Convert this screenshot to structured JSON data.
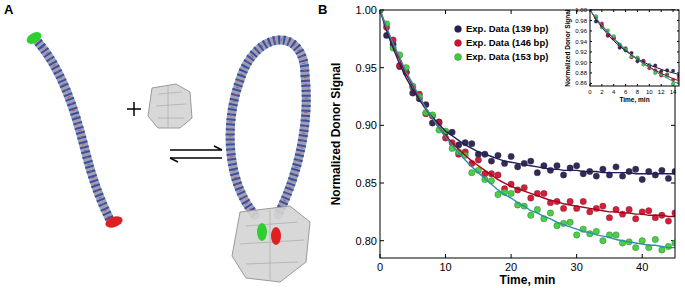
{
  "panel_labels": [
    "A",
    "B"
  ],
  "chart_data": [
    {
      "type": "scatter",
      "x_label": "Time, min",
      "y_label": "Normalized Donor Signal",
      "x": [
        0,
        1,
        2,
        3,
        4,
        5,
        6,
        7,
        8,
        9,
        10,
        11,
        12,
        13,
        14,
        15,
        16,
        17,
        18,
        19,
        20,
        21,
        22,
        23,
        24,
        25,
        26,
        27,
        28,
        29,
        30,
        31,
        32,
        33,
        34,
        35,
        36,
        37,
        38,
        39,
        40,
        41,
        42,
        43,
        44,
        45
      ],
      "xlim": [
        0,
        45
      ],
      "xticks": [
        0,
        10,
        20,
        30,
        40
      ],
      "ylim": [
        0.785,
        1.0
      ],
      "yticks": [
        {
          "value": 0.8,
          "label": "0.80"
        },
        {
          "value": 0.85,
          "label": "0.85"
        },
        {
          "value": 0.9,
          "label": "0.90"
        },
        {
          "value": 0.95,
          "label": "0.95"
        },
        {
          "value": 1.0,
          "label": "1.00"
        }
      ],
      "grid": false,
      "legend": "top-right",
      "series": [
        {
          "name": "Exp. Data (139 bp)",
          "type": "scatter",
          "marker": "circle",
          "color": "#2b1d4e",
          "values": [
            1.0,
            0.978,
            0.97,
            0.951,
            0.946,
            0.928,
            0.923,
            0.918,
            0.902,
            0.903,
            0.894,
            0.894,
            0.883,
            0.885,
            0.884,
            0.875,
            0.875,
            0.869,
            0.874,
            0.867,
            0.873,
            0.864,
            0.867,
            0.869,
            0.859,
            0.865,
            0.861,
            0.865,
            0.857,
            0.863,
            0.865,
            0.858,
            0.86,
            0.856,
            0.862,
            0.857,
            0.864,
            0.856,
            0.86,
            0.862,
            0.853,
            0.86,
            0.857,
            0.861,
            0.854,
            0.86
          ]
        },
        {
          "name": "Exp. Data (146 bp)",
          "type": "scatter",
          "marker": "circle",
          "color": "#d4112f",
          "values": [
            1.0,
            0.985,
            0.974,
            0.952,
            0.946,
            0.933,
            0.927,
            0.91,
            0.908,
            0.902,
            0.889,
            0.885,
            0.875,
            0.877,
            0.867,
            0.87,
            0.858,
            0.858,
            0.857,
            0.845,
            0.849,
            0.844,
            0.846,
            0.837,
            0.841,
            0.841,
            0.833,
            0.834,
            0.828,
            0.834,
            0.828,
            0.834,
            0.825,
            0.828,
            0.83,
            0.82,
            0.827,
            0.823,
            0.827,
            0.819,
            0.825,
            0.826,
            0.82,
            0.822,
            0.817,
            0.824
          ]
        },
        {
          "name": "Exp. Data (153 bp)",
          "type": "scatter",
          "marker": "circle",
          "color": "#3fcf3a",
          "values": [
            1.0,
            0.988,
            0.967,
            0.961,
            0.95,
            0.934,
            0.925,
            0.911,
            0.909,
            0.896,
            0.895,
            0.88,
            0.877,
            0.874,
            0.859,
            0.861,
            0.853,
            0.852,
            0.84,
            0.842,
            0.841,
            0.831,
            0.83,
            0.822,
            0.827,
            0.819,
            0.824,
            0.813,
            0.815,
            0.816,
            0.805,
            0.81,
            0.806,
            0.808,
            0.8,
            0.805,
            0.805,
            0.798,
            0.799,
            0.794,
            0.8,
            0.794,
            0.801,
            0.792,
            0.795,
            0.798
          ]
        },
        {
          "type": "line",
          "line_style": "solid",
          "color": "#1e1e5a",
          "values": [
            1.0,
            0.982,
            0.967,
            0.953,
            0.941,
            0.931,
            0.922,
            0.914,
            0.907,
            0.901,
            0.895,
            0.891,
            0.887,
            0.883,
            0.88,
            0.877,
            0.875,
            0.873,
            0.871,
            0.869,
            0.868,
            0.867,
            0.866,
            0.865,
            0.864,
            0.863,
            0.862,
            0.862,
            0.861,
            0.861,
            0.861,
            0.86,
            0.86,
            0.86,
            0.859,
            0.859,
            0.859,
            0.859,
            0.859,
            0.858,
            0.858,
            0.858,
            0.858,
            0.858,
            0.858,
            0.858
          ]
        },
        {
          "type": "line",
          "line_style": "solid",
          "color": "#a8001c",
          "values": [
            1.0,
            0.984,
            0.97,
            0.957,
            0.944,
            0.934,
            0.924,
            0.914,
            0.906,
            0.898,
            0.891,
            0.885,
            0.879,
            0.874,
            0.869,
            0.865,
            0.861,
            0.857,
            0.853,
            0.85,
            0.847,
            0.845,
            0.843,
            0.841,
            0.839,
            0.837,
            0.835,
            0.834,
            0.832,
            0.831,
            0.83,
            0.829,
            0.828,
            0.827,
            0.826,
            0.825,
            0.825,
            0.824,
            0.824,
            0.823,
            0.823,
            0.822,
            0.822,
            0.822,
            0.821,
            0.821
          ]
        },
        {
          "type": "line",
          "line_style": "solid",
          "color": "#2a8fa8",
          "values": [
            1.0,
            0.985,
            0.971,
            0.959,
            0.946,
            0.936,
            0.925,
            0.915,
            0.906,
            0.898,
            0.89,
            0.883,
            0.876,
            0.87,
            0.864,
            0.859,
            0.854,
            0.849,
            0.844,
            0.84,
            0.837,
            0.833,
            0.83,
            0.826,
            0.824,
            0.821,
            0.819,
            0.816,
            0.814,
            0.812,
            0.81,
            0.808,
            0.807,
            0.805,
            0.804,
            0.803,
            0.801,
            0.8,
            0.799,
            0.798,
            0.797,
            0.796,
            0.796,
            0.795,
            0.794,
            0.794
          ]
        }
      ]
    },
    {
      "type": "scatter",
      "x_label": "Time, min",
      "y_label": "Normalized Donor Signal",
      "x": [
        0,
        1,
        2,
        3,
        4,
        5,
        6,
        7,
        8,
        9,
        10,
        11,
        12,
        13,
        14,
        15
      ],
      "xlim": [
        0,
        15
      ],
      "xticks": [
        0,
        2,
        4,
        6,
        8,
        10,
        12,
        14
      ],
      "ylim": [
        0.855,
        1.0
      ],
      "yticks": [
        {
          "value": 0.86,
          "label": "0.86"
        },
        {
          "value": 0.88,
          "label": "0.88"
        },
        {
          "value": 0.9,
          "label": "0.90"
        },
        {
          "value": 0.92,
          "label": "0.92"
        },
        {
          "value": 0.94,
          "label": "0.94"
        },
        {
          "value": 0.96,
          "label": "0.96"
        },
        {
          "value": 0.98,
          "label": "0.98"
        },
        {
          "value": 1.0,
          "label": "1.00"
        }
      ],
      "grid": false,
      "series": [
        {
          "type": "scatter",
          "marker": "circle",
          "color": "#2b1d4e",
          "values": [
            1.0,
            0.978,
            0.97,
            0.951,
            0.946,
            0.928,
            0.923,
            0.918,
            0.902,
            0.903,
            0.894,
            0.894,
            0.883,
            0.885,
            0.884,
            0.875
          ]
        },
        {
          "type": "scatter",
          "marker": "circle",
          "color": "#d4112f",
          "values": [
            1.0,
            0.985,
            0.974,
            0.952,
            0.946,
            0.933,
            0.927,
            0.91,
            0.908,
            0.902,
            0.889,
            0.885,
            0.875,
            0.877,
            0.867,
            0.87
          ]
        },
        {
          "type": "scatter",
          "marker": "circle",
          "color": "#3fcf3a",
          "values": [
            1.0,
            0.988,
            0.967,
            0.961,
            0.95,
            0.934,
            0.925,
            0.911,
            0.909,
            0.896,
            0.895,
            0.88,
            0.877,
            0.874,
            0.859,
            0.861
          ]
        },
        {
          "type": "line",
          "line_style": "solid",
          "color": "#1e1e5a",
          "values": [
            1.0,
            0.982,
            0.967,
            0.953,
            0.941,
            0.931,
            0.922,
            0.914,
            0.907,
            0.901,
            0.895,
            0.891,
            0.887,
            0.883,
            0.88,
            0.877
          ]
        },
        {
          "type": "line",
          "line_style": "solid",
          "color": "#a8001c",
          "values": [
            1.0,
            0.984,
            0.97,
            0.957,
            0.944,
            0.934,
            0.924,
            0.914,
            0.906,
            0.898,
            0.891,
            0.885,
            0.879,
            0.874,
            0.869,
            0.865
          ]
        },
        {
          "type": "line",
          "line_style": "solid",
          "color": "#2a8fa8",
          "values": [
            1.0,
            0.985,
            0.971,
            0.959,
            0.946,
            0.936,
            0.925,
            0.915,
            0.906,
            0.898,
            0.89,
            0.883,
            0.876,
            0.87,
            0.864,
            0.859
          ]
        }
      ]
    }
  ]
}
